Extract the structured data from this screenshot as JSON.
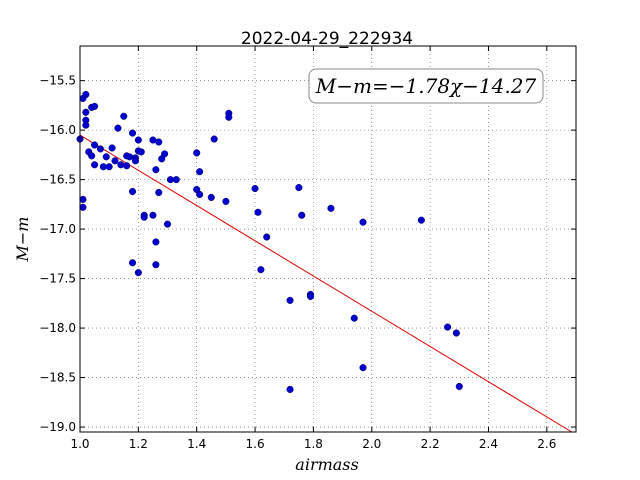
{
  "chart_data": {
    "type": "scatter",
    "title": "2022-04-29_222934",
    "xlabel": "airmass",
    "ylabel": "M−m",
    "xlim": [
      1.0,
      2.7
    ],
    "ylim": [
      -19.05,
      -15.15
    ],
    "y_inverted": true,
    "grid": true,
    "x_ticks": [
      1.0,
      1.2,
      1.4,
      1.6,
      1.8,
      2.0,
      2.2,
      2.4,
      2.6
    ],
    "x_tick_labels": [
      "1.0",
      "1.2",
      "1.4",
      "1.6",
      "1.8",
      "2.0",
      "2.2",
      "2.4",
      "2.6"
    ],
    "y_ticks": [
      -15.5,
      -16.0,
      -16.5,
      -17.0,
      -17.5,
      -18.0,
      -18.5,
      -19.0
    ],
    "y_tick_labels": [
      "−15.5",
      "−16.0",
      "−16.5",
      "−17.0",
      "−17.5",
      "−18.0",
      "−18.5",
      "−19.0"
    ],
    "annotation": "M−m=−1.78χ−14.27",
    "fit": {
      "slope": -1.78,
      "intercept": -14.27,
      "color": "#dd0000"
    },
    "point_color": "#0000cc",
    "points": [
      [
        1.0,
        -16.09
      ],
      [
        1.01,
        -15.68
      ],
      [
        1.01,
        -16.7
      ],
      [
        1.01,
        -16.78
      ],
      [
        1.02,
        -15.82
      ],
      [
        1.02,
        -15.9
      ],
      [
        1.02,
        -15.95
      ],
      [
        1.02,
        -15.64
      ],
      [
        1.03,
        -16.22
      ],
      [
        1.04,
        -15.77
      ],
      [
        1.04,
        -16.26
      ],
      [
        1.05,
        -16.15
      ],
      [
        1.05,
        -16.35
      ],
      [
        1.05,
        -15.76
      ],
      [
        1.07,
        -16.19
      ],
      [
        1.08,
        -16.37
      ],
      [
        1.09,
        -16.27
      ],
      [
        1.1,
        -16.37
      ],
      [
        1.11,
        -16.18
      ],
      [
        1.12,
        -16.31
      ],
      [
        1.13,
        -15.98
      ],
      [
        1.14,
        -16.35
      ],
      [
        1.15,
        -15.86
      ],
      [
        1.16,
        -16.36
      ],
      [
        1.16,
        -16.26
      ],
      [
        1.17,
        -16.27
      ],
      [
        1.18,
        -16.03
      ],
      [
        1.18,
        -16.62
      ],
      [
        1.18,
        -17.34
      ],
      [
        1.19,
        -16.28
      ],
      [
        1.19,
        -16.31
      ],
      [
        1.2,
        -16.21
      ],
      [
        1.2,
        -16.1
      ],
      [
        1.2,
        -17.44
      ],
      [
        1.21,
        -16.22
      ],
      [
        1.22,
        -16.86
      ],
      [
        1.22,
        -16.88
      ],
      [
        1.25,
        -16.1
      ],
      [
        1.25,
        -16.86
      ],
      [
        1.26,
        -16.4
      ],
      [
        1.26,
        -17.13
      ],
      [
        1.26,
        -17.36
      ],
      [
        1.27,
        -16.12
      ],
      [
        1.27,
        -16.63
      ],
      [
        1.28,
        -16.29
      ],
      [
        1.29,
        -16.24
      ],
      [
        1.3,
        -16.95
      ],
      [
        1.31,
        -16.5
      ],
      [
        1.33,
        -16.5
      ],
      [
        1.4,
        -16.23
      ],
      [
        1.4,
        -16.6
      ],
      [
        1.41,
        -16.42
      ],
      [
        1.41,
        -16.65
      ],
      [
        1.45,
        -16.68
      ],
      [
        1.46,
        -16.09
      ],
      [
        1.5,
        -16.72
      ],
      [
        1.51,
        -15.83
      ],
      [
        1.51,
        -15.87
      ],
      [
        1.6,
        -16.59
      ],
      [
        1.61,
        -16.83
      ],
      [
        1.62,
        -17.41
      ],
      [
        1.64,
        -17.08
      ],
      [
        1.72,
        -17.72
      ],
      [
        1.72,
        -18.62
      ],
      [
        1.75,
        -16.58
      ],
      [
        1.76,
        -16.86
      ],
      [
        1.79,
        -17.66
      ],
      [
        1.79,
        -17.68
      ],
      [
        1.86,
        -16.79
      ],
      [
        1.94,
        -17.9
      ],
      [
        1.97,
        -16.93
      ],
      [
        1.97,
        -18.4
      ],
      [
        2.17,
        -16.91
      ],
      [
        2.26,
        -17.99
      ],
      [
        2.29,
        -18.05
      ],
      [
        2.3,
        -18.59
      ]
    ]
  }
}
